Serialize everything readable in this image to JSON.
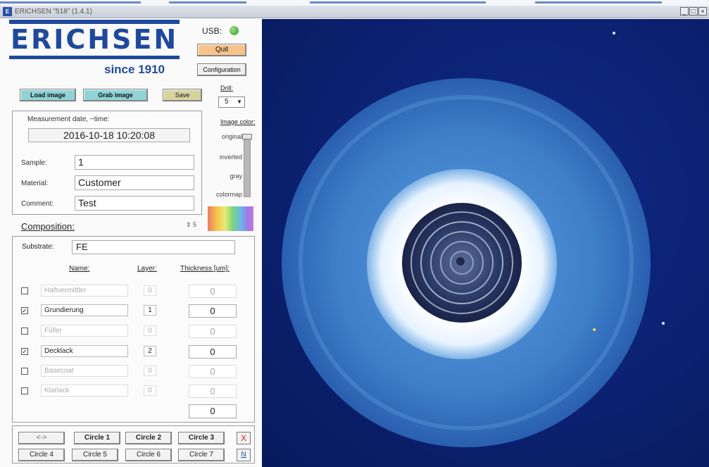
{
  "window": {
    "title": "ERICHSEN \"518\" (1.4.1)",
    "controls": [
      "_",
      "□",
      "×"
    ]
  },
  "logo": {
    "text": "ERICHSEN",
    "since": "since 1910",
    "color": "#1f4a9c"
  },
  "usb": {
    "label": "USB:",
    "status_color": "#2f9b2b"
  },
  "buttons": {
    "quit": "Quit",
    "configuration": "Configuration",
    "load_image": "Load image",
    "grab_image": "Grab image",
    "save": "Save"
  },
  "drill": {
    "label": "Drill:",
    "value": "5"
  },
  "measurement": {
    "label": "Measurement date, ~time:",
    "value": "2016-10-18 10:20:08",
    "sample_label": "Sample:",
    "sample_value": "1",
    "material_label": "Material:",
    "material_value": "Customer",
    "comment_label": "Comment:",
    "comment_value": "Test"
  },
  "image_color": {
    "label": "Image color:",
    "options": [
      "original",
      "inverted",
      "gray",
      "colormap"
    ],
    "selected": "original"
  },
  "composition": {
    "label": "Composition:",
    "spinner_value": "5",
    "substrate_label": "Substrate:",
    "substrate_value": "FE",
    "headers": {
      "name": "Name:",
      "layer": "Layer:",
      "thickness": "Thickness [um]:"
    },
    "layers": [
      {
        "name": "Haftvermittler",
        "layer": "0",
        "thickness": "0",
        "checked": ""
      },
      {
        "name": "Grundierung",
        "layer": "1",
        "thickness": "0",
        "checked": "✓"
      },
      {
        "name": "Füller",
        "layer": "0",
        "thickness": "0",
        "checked": ""
      },
      {
        "name": "Decklack",
        "layer": "2",
        "thickness": "0",
        "checked": "✓"
      },
      {
        "name": "Basecoat",
        "layer": "0",
        "thickness": "0",
        "checked": ""
      },
      {
        "name": "Klarlack",
        "layer": "0",
        "thickness": "0",
        "checked": ""
      }
    ],
    "total": "0"
  },
  "circles": {
    "nav": "<->",
    "row1": [
      "Circle 1",
      "Circle 2",
      "Circle 3"
    ],
    "row2": [
      "Circle 4",
      "Circle 5",
      "Circle 6",
      "Circle 7"
    ],
    "x": "X",
    "n": "N"
  }
}
